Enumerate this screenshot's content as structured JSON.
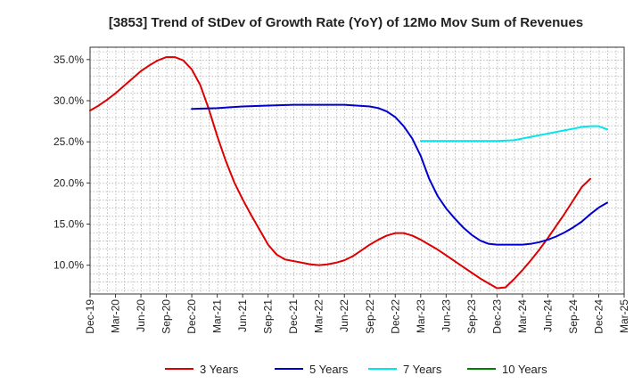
{
  "chart_data": {
    "type": "line",
    "title": "[3853]  Trend of StDev of Growth Rate (YoY) of 12Mo Mov Sum of Revenues",
    "xlabel": "",
    "ylabel": "",
    "x_ticks": [
      "Dec-19",
      "Mar-20",
      "Jun-20",
      "Sep-20",
      "Dec-20",
      "Mar-21",
      "Jun-21",
      "Sep-21",
      "Dec-21",
      "Mar-22",
      "Jun-22",
      "Sep-22",
      "Dec-22",
      "Mar-23",
      "Jun-23",
      "Sep-23",
      "Dec-23",
      "Mar-24",
      "Jun-24",
      "Sep-24",
      "Dec-24",
      "Mar-25"
    ],
    "y_ticks": [
      10,
      15,
      20,
      25,
      30,
      35
    ],
    "y_tick_labels": [
      "10.0%",
      "15.0%",
      "20.0%",
      "25.0%",
      "30.0%",
      "35.0%"
    ],
    "ylim": [
      6.5,
      36.5
    ],
    "xlim_months": [
      0,
      63
    ],
    "grid": true,
    "legend_position": "bottom",
    "series": [
      {
        "name": "3 Years",
        "color": "#dd0000",
        "points": [
          [
            0,
            28.8
          ],
          [
            1,
            29.4
          ],
          [
            2,
            30.1
          ],
          [
            3,
            30.9
          ],
          [
            4,
            31.8
          ],
          [
            5,
            32.7
          ],
          [
            6,
            33.6
          ],
          [
            7,
            34.3
          ],
          [
            8,
            34.9
          ],
          [
            9,
            35.3
          ],
          [
            10,
            35.3
          ],
          [
            11,
            34.9
          ],
          [
            12,
            33.8
          ],
          [
            13,
            31.9
          ],
          [
            14,
            29.0
          ],
          [
            15,
            25.7
          ],
          [
            16,
            22.7
          ],
          [
            17,
            20.1
          ],
          [
            18,
            18.0
          ],
          [
            19,
            16.1
          ],
          [
            20,
            14.3
          ],
          [
            21,
            12.5
          ],
          [
            22,
            11.3
          ],
          [
            23,
            10.7
          ],
          [
            24,
            10.5
          ],
          [
            25,
            10.3
          ],
          [
            26,
            10.1
          ],
          [
            27,
            10.0
          ],
          [
            28,
            10.1
          ],
          [
            29,
            10.3
          ],
          [
            30,
            10.6
          ],
          [
            31,
            11.1
          ],
          [
            32,
            11.8
          ],
          [
            33,
            12.5
          ],
          [
            34,
            13.1
          ],
          [
            35,
            13.6
          ],
          [
            36,
            13.9
          ],
          [
            37,
            13.9
          ],
          [
            38,
            13.6
          ],
          [
            39,
            13.1
          ],
          [
            40,
            12.5
          ],
          [
            41,
            11.9
          ],
          [
            42,
            11.2
          ],
          [
            43,
            10.5
          ],
          [
            44,
            9.8
          ],
          [
            45,
            9.1
          ],
          [
            46,
            8.4
          ],
          [
            47,
            7.8
          ],
          [
            48,
            7.2
          ],
          [
            49,
            7.3
          ],
          [
            50,
            8.3
          ],
          [
            51,
            9.4
          ],
          [
            52,
            10.6
          ],
          [
            53,
            11.9
          ],
          [
            54,
            13.3
          ],
          [
            55,
            14.8
          ],
          [
            56,
            16.3
          ],
          [
            57,
            17.9
          ],
          [
            58,
            19.5
          ],
          [
            59,
            20.5
          ]
        ]
      },
      {
        "name": "5 Years",
        "color": "#0000cc",
        "points": [
          [
            12,
            29.0
          ],
          [
            15,
            29.1
          ],
          [
            18,
            29.3
          ],
          [
            21,
            29.4
          ],
          [
            24,
            29.5
          ],
          [
            27,
            29.5
          ],
          [
            30,
            29.5
          ],
          [
            33,
            29.3
          ],
          [
            34,
            29.1
          ],
          [
            35,
            28.7
          ],
          [
            36,
            28.0
          ],
          [
            37,
            26.9
          ],
          [
            38,
            25.4
          ],
          [
            39,
            23.3
          ],
          [
            40,
            20.5
          ],
          [
            41,
            18.4
          ],
          [
            42,
            16.9
          ],
          [
            43,
            15.7
          ],
          [
            44,
            14.6
          ],
          [
            45,
            13.7
          ],
          [
            46,
            13.0
          ],
          [
            47,
            12.6
          ],
          [
            48,
            12.5
          ],
          [
            49,
            12.5
          ],
          [
            50,
            12.5
          ],
          [
            51,
            12.5
          ],
          [
            52,
            12.6
          ],
          [
            53,
            12.8
          ],
          [
            54,
            13.1
          ],
          [
            55,
            13.5
          ],
          [
            56,
            14.0
          ],
          [
            57,
            14.6
          ],
          [
            58,
            15.3
          ],
          [
            59,
            16.2
          ],
          [
            60,
            17.0
          ],
          [
            61,
            17.6
          ]
        ]
      },
      {
        "name": "7 Years",
        "color": "#00e5ee",
        "points": [
          [
            39,
            25.1
          ],
          [
            42,
            25.1
          ],
          [
            45,
            25.1
          ],
          [
            48,
            25.1
          ],
          [
            50,
            25.2
          ],
          [
            52,
            25.6
          ],
          [
            54,
            26.0
          ],
          [
            56,
            26.4
          ],
          [
            58,
            26.8
          ],
          [
            59,
            26.9
          ],
          [
            60,
            26.9
          ],
          [
            61,
            26.5
          ]
        ]
      },
      {
        "name": "10 Years",
        "color": "#008000",
        "points": []
      }
    ]
  }
}
